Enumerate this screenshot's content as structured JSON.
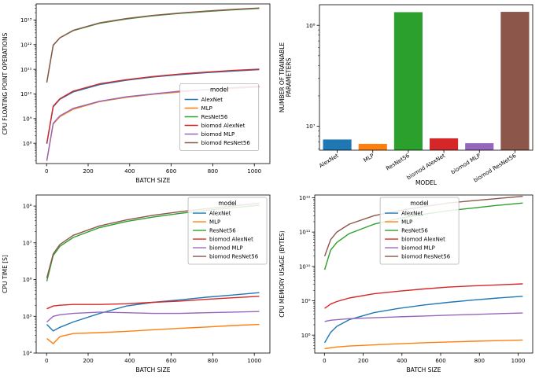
{
  "palette": {
    "AlexNet": "#1f77b4",
    "MLP": "#ff7f0e",
    "ResNet56": "#2ca02c",
    "biomod AlexNet": "#d62728",
    "biomod MLP": "#9467bd",
    "biomod ResNet56": "#8c564b"
  },
  "chart_data": [
    {
      "id": "flops",
      "type": "line",
      "title": "",
      "xlabel": "BATCH SIZE",
      "ylabel": "CPU FLOATING POINT OPERATIONS",
      "yscale": "log",
      "xlim": [
        -50,
        1075
      ],
      "x_ticks": [
        0,
        200,
        400,
        600,
        800,
        1000
      ],
      "ylim": [
        15000000.0,
        45000000000000.0
      ],
      "legend": {
        "title": "model",
        "x": 0.615,
        "y": 0.5
      },
      "x": [
        1,
        32,
        64,
        128,
        256,
        384,
        512,
        640,
        768,
        896,
        1024
      ],
      "series": [
        {
          "name": "AlexNet",
          "values": [
            95000000.0,
            3000000000.0,
            6100000000.0,
            12000000000.0,
            24000000000.0,
            36000000000.0,
            49000000000.0,
            61000000000.0,
            73000000000.0,
            85000000000.0,
            97000000000.0
          ]
        },
        {
          "name": "MLP",
          "values": [
            19000000.0,
            610000000.0,
            1200000000.0,
            2400000000.0,
            4900000000.0,
            7300000000.0,
            9700000000.0,
            12000000000.0,
            15000000000.0,
            17000000000.0,
            19000000000.0
          ]
        },
        {
          "name": "ResNet56",
          "values": [
            29000000000.0,
            930000000000.0,
            1900000000000.0,
            3700000000000.0,
            7400000000000.0,
            11000000000000.0,
            15000000000000.0,
            18500000000000.0,
            22000000000000.0,
            26000000000000.0,
            29500000000000.0
          ]
        },
        {
          "name": "biomod AlexNet",
          "values": [
            100000000.0,
            3200000000.0,
            6400000000.0,
            13000000000.0,
            26000000000.0,
            38000000000.0,
            51000000000.0,
            64000000000.0,
            77000000000.0,
            90000000000.0,
            102000000000.0
          ]
        },
        {
          "name": "biomod MLP",
          "values": [
            20000000.0,
            640000000.0,
            1300000000.0,
            2600000000.0,
            5100000000.0,
            7700000000.0,
            10000000000.0,
            13000000000.0,
            15000000000.0,
            18000000000.0,
            20500000000.0
          ]
        },
        {
          "name": "biomod ResNet56",
          "values": [
            30000000000.0,
            960000000000.0,
            1900000000000.0,
            3800000000000.0,
            7700000000000.0,
            11500000000000.0,
            15400000000000.0,
            19200000000000.0,
            23000000000000.0,
            26900000000000.0,
            30700000000000.0
          ]
        }
      ]
    },
    {
      "id": "params",
      "type": "bar",
      "title": "",
      "xlabel": "MODEL",
      "ylabel": "NUMBER OF TRAINABLE\nPARAMETERS",
      "yscale": "log",
      "ylim": [
        5800000.0,
        160000000.0
      ],
      "categories": [
        "AlexNet",
        "MLP",
        "ResNet56",
        "biomod AlexNet",
        "biomod MLP",
        "biomod ResNet56"
      ],
      "values": [
        7400000.0,
        6700000.0,
        135000000.0,
        7600000.0,
        6800000.0,
        136000000.0
      ],
      "bar_colors": [
        "#1f77b4",
        "#ff7f0e",
        "#2ca02c",
        "#d62728",
        "#9467bd",
        "#8c564b"
      ]
    },
    {
      "id": "cpu-time",
      "type": "line",
      "title": "",
      "xlabel": "BATCH SIZE",
      "ylabel": "CPU TIME [S]",
      "yscale": "log",
      "xlim": [
        -50,
        1075
      ],
      "x_ticks": [
        0,
        200,
        400,
        600,
        800,
        1000
      ],
      "ylim": [
        10000.0,
        200000000.0
      ],
      "legend": {
        "title": "model",
        "x": 0.65,
        "y": 0.015
      },
      "x": [
        1,
        32,
        64,
        128,
        256,
        384,
        512,
        640,
        768,
        896,
        1024
      ],
      "series": [
        {
          "name": "AlexNet",
          "values": [
            60000.0,
            40000.0,
            50000.0,
            70000.0,
            120000.0,
            190000.0,
            240000.0,
            280000.0,
            330000.0,
            380000.0,
            440000.0
          ]
        },
        {
          "name": "MLP",
          "values": [
            25000.0,
            18000.0,
            28000.0,
            34000.0,
            36000.0,
            39000.0,
            43000.0,
            47000.0,
            51000.0,
            56000.0,
            60000.0
          ]
        },
        {
          "name": "ResNet56",
          "values": [
            900000.0,
            4500000.0,
            8000000.0,
            14000000.0,
            26000000.0,
            38000000.0,
            50000000.0,
            63000000.0,
            76000000.0,
            90000000.0,
            105000000.0
          ]
        },
        {
          "name": "biomod AlexNet",
          "values": [
            160000.0,
            190000.0,
            200000.0,
            210000.0,
            210000.0,
            220000.0,
            240000.0,
            260000.0,
            290000.0,
            320000.0,
            350000.0
          ]
        },
        {
          "name": "biomod MLP",
          "values": [
            70000.0,
            100000.0,
            110000.0,
            120000.0,
            130000.0,
            125000.0,
            120000.0,
            120000.0,
            125000.0,
            130000.0,
            135000.0
          ]
        },
        {
          "name": "biomod ResNet56",
          "values": [
            1100000.0,
            5000000.0,
            9000000.0,
            16000000.0,
            29000000.0,
            42000000.0,
            56000000.0,
            70000000.0,
            85000000.0,
            100000000.0,
            120000000.0
          ]
        }
      ]
    },
    {
      "id": "cpu-memory",
      "type": "line",
      "title": "",
      "xlabel": "BATCH SIZE",
      "ylabel": "CPU MEMORY USAGE (BYTES)",
      "yscale": "log",
      "xlim": [
        -50,
        1075
      ],
      "x_ticks": [
        0,
        200,
        400,
        600,
        800,
        1000
      ],
      "ylim": [
        30000000.0,
        1200000000000.0
      ],
      "legend": {
        "title": "model",
        "x": 0.3,
        "y": 0.015
      },
      "x": [
        1,
        32,
        64,
        128,
        256,
        384,
        512,
        640,
        768,
        896,
        1024
      ],
      "series": [
        {
          "name": "AlexNet",
          "values": [
            60000000.0,
            120000000.0,
            180000000.0,
            280000000.0,
            450000000.0,
            600000000.0,
            750000000.0,
            900000000.0,
            1050000000.0,
            1200000000.0,
            1350000000.0
          ]
        },
        {
          "name": "MLP",
          "values": [
            40000000.0,
            43000000.0,
            45000000.0,
            48000000.0,
            52000000.0,
            56000000.0,
            60000000.0,
            63000000.0,
            66000000.0,
            69000000.0,
            72000000.0
          ]
        },
        {
          "name": "ResNet56",
          "values": [
            8000000000.0,
            30000000000.0,
            50000000000.0,
            90000000000.0,
            170000000000.0,
            250000000000.0,
            330000000000.0,
            420000000000.0,
            500000000000.0,
            600000000000.0,
            700000000000.0
          ]
        },
        {
          "name": "biomod AlexNet",
          "values": [
            600000000.0,
            800000000.0,
            950000000.0,
            1200000000.0,
            1600000000.0,
            1900000000.0,
            2200000000.0,
            2500000000.0,
            2700000000.0,
            2900000000.0,
            3100000000.0
          ]
        },
        {
          "name": "biomod MLP",
          "values": [
            250000000.0,
            270000000.0,
            280000000.0,
            300000000.0,
            320000000.0,
            340000000.0,
            360000000.0,
            380000000.0,
            400000000.0,
            420000000.0,
            440000000.0
          ]
        },
        {
          "name": "biomod ResNet56",
          "values": [
            20000000000.0,
            60000000000.0,
            100000000000.0,
            170000000000.0,
            300000000000.0,
            420000000000.0,
            550000000000.0,
            700000000000.0,
            820000000000.0,
            950000000000.0,
            1100000000000.0
          ]
        }
      ]
    }
  ]
}
